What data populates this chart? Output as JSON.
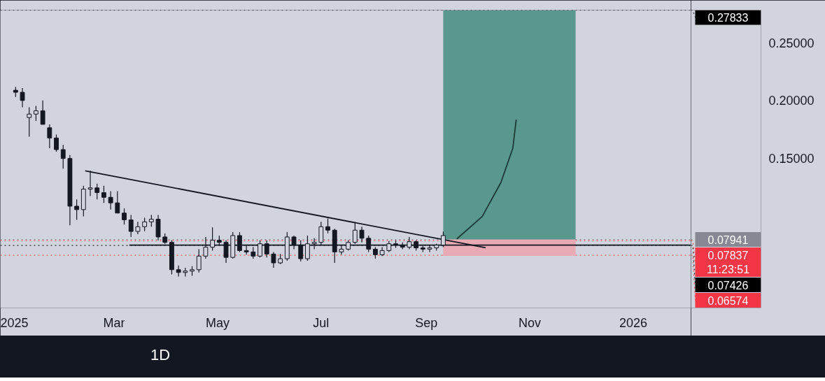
{
  "chart_data": {
    "type": "candlestick",
    "x": [
      "2025-01-02",
      "2025-01-06",
      "2025-01-10",
      "2025-01-14",
      "2025-01-18",
      "2025-01-22",
      "2025-01-26",
      "2025-01-30",
      "2025-02-03",
      "2025-02-07",
      "2025-02-11",
      "2025-02-15",
      "2025-02-19",
      "2025-02-23",
      "2025-02-27",
      "2025-03-03",
      "2025-03-07",
      "2025-03-11",
      "2025-03-15",
      "2025-03-19",
      "2025-03-23",
      "2025-03-27",
      "2025-03-31",
      "2025-04-04",
      "2025-04-08",
      "2025-04-12",
      "2025-04-16",
      "2025-04-20",
      "2025-04-24",
      "2025-04-28",
      "2025-05-02",
      "2025-05-06",
      "2025-05-10",
      "2025-05-14",
      "2025-05-18",
      "2025-05-22",
      "2025-05-26",
      "2025-05-30",
      "2025-06-03",
      "2025-06-07",
      "2025-06-11",
      "2025-06-15",
      "2025-06-19",
      "2025-06-23",
      "2025-06-27",
      "2025-07-01",
      "2025-07-05",
      "2025-07-09",
      "2025-07-13",
      "2025-07-17",
      "2025-07-21",
      "2025-07-25",
      "2025-07-29",
      "2025-08-02",
      "2025-08-06",
      "2025-08-10",
      "2025-08-14",
      "2025-08-18",
      "2025-08-22",
      "2025-08-26",
      "2025-08-30",
      "2025-09-03",
      "2025-09-07",
      "2025-09-11"
    ],
    "ohlc": [
      [
        0.2089,
        0.2119,
        0.203,
        0.2071
      ],
      [
        0.2071,
        0.2107,
        0.1941,
        0.2
      ],
      [
        0.1852,
        0.1941,
        0.1686,
        0.1882
      ],
      [
        0.1882,
        0.1953,
        0.1823,
        0.1911
      ],
      [
        0.1911,
        0.2,
        0.1793,
        0.1793
      ],
      [
        0.1763,
        0.1793,
        0.1586,
        0.1675
      ],
      [
        0.1675,
        0.1704,
        0.1556,
        0.1574
      ],
      [
        0.1574,
        0.1615,
        0.1408,
        0.1497
      ],
      [
        0.1497,
        0.1527,
        0.0917,
        0.1083
      ],
      [
        0.1083,
        0.1142,
        0.0964,
        0.1053
      ],
      [
        0.1053,
        0.126,
        0.0994,
        0.1231
      ],
      [
        0.1231,
        0.139,
        0.1171,
        0.1242
      ],
      [
        0.1242,
        0.1278,
        0.1142,
        0.1201
      ],
      [
        0.1201,
        0.126,
        0.1112,
        0.116
      ],
      [
        0.116,
        0.1213,
        0.1053,
        0.1112
      ],
      [
        0.1112,
        0.1213,
        0.1023,
        0.1023
      ],
      [
        0.1023,
        0.1065,
        0.0923,
        0.0964
      ],
      [
        0.0964,
        0.1006,
        0.0816,
        0.0864
      ],
      [
        0.0864,
        0.0947,
        0.084,
        0.0905
      ],
      [
        0.0905,
        0.0982,
        0.0864,
        0.0947
      ],
      [
        0.0947,
        0.1006,
        0.0905,
        0.097
      ],
      [
        0.097,
        0.1006,
        0.0787,
        0.0816
      ],
      [
        0.0816,
        0.0846,
        0.0757,
        0.0769
      ],
      [
        0.0769,
        0.0787,
        0.0491,
        0.0532
      ],
      [
        0.0532,
        0.0568,
        0.0473,
        0.0508
      ],
      [
        0.0508,
        0.0549,
        0.0473,
        0.052
      ],
      [
        0.052,
        0.0562,
        0.0479,
        0.0532
      ],
      [
        0.0532,
        0.071,
        0.0508,
        0.065
      ],
      [
        0.065,
        0.0816,
        0.0627,
        0.0727
      ],
      [
        0.0727,
        0.0899,
        0.0698,
        0.0787
      ],
      [
        0.0787,
        0.0828,
        0.0745,
        0.0769
      ],
      [
        0.0769,
        0.0787,
        0.0591,
        0.0639
      ],
      [
        0.0639,
        0.0858,
        0.0627,
        0.0828
      ],
      [
        0.0828,
        0.0858,
        0.0686,
        0.0698
      ],
      [
        0.0698,
        0.0745,
        0.0662,
        0.0686
      ],
      [
        0.0686,
        0.0727,
        0.0627,
        0.065
      ],
      [
        0.065,
        0.0787,
        0.0639,
        0.0757
      ],
      [
        0.0757,
        0.0787,
        0.0639,
        0.0668
      ],
      [
        0.0668,
        0.0686,
        0.0549,
        0.0591
      ],
      [
        0.0591,
        0.0668,
        0.0579,
        0.0627
      ],
      [
        0.0627,
        0.0858,
        0.0609,
        0.0816
      ],
      [
        0.0816,
        0.0828,
        0.071,
        0.0745
      ],
      [
        0.0745,
        0.0787,
        0.0603,
        0.0627
      ],
      [
        0.0627,
        0.0828,
        0.0609,
        0.0757
      ],
      [
        0.0757,
        0.0805,
        0.071,
        0.0769
      ],
      [
        0.0769,
        0.0947,
        0.0745,
        0.0905
      ],
      [
        0.0905,
        0.0976,
        0.0846,
        0.0875
      ],
      [
        0.0875,
        0.0887,
        0.0591,
        0.0686
      ],
      [
        0.0686,
        0.0745,
        0.0662,
        0.071
      ],
      [
        0.071,
        0.0787,
        0.0698,
        0.0769
      ],
      [
        0.0769,
        0.0935,
        0.0757,
        0.0875
      ],
      [
        0.0875,
        0.0905,
        0.0769,
        0.0805
      ],
      [
        0.0805,
        0.0828,
        0.0686,
        0.071
      ],
      [
        0.071,
        0.0727,
        0.0627,
        0.0662
      ],
      [
        0.0662,
        0.0727,
        0.065,
        0.0698
      ],
      [
        0.0698,
        0.0781,
        0.0686,
        0.0757
      ],
      [
        0.0757,
        0.0787,
        0.0721,
        0.0745
      ],
      [
        0.0745,
        0.0769,
        0.071,
        0.0727
      ],
      [
        0.0727,
        0.0816,
        0.071,
        0.0775
      ],
      [
        0.0775,
        0.0787,
        0.0698,
        0.0721
      ],
      [
        0.0721,
        0.0745,
        0.0686,
        0.071
      ],
      [
        0.071,
        0.0745,
        0.0686,
        0.0721
      ],
      [
        0.0721,
        0.0757,
        0.0698,
        0.0745
      ],
      [
        0.0745,
        0.0864,
        0.0727,
        0.0828
      ]
    ],
    "color": "#131722",
    "series": [
      {
        "type": "line",
        "x": [
          "2025-09-11",
          "2025-11-28"
        ],
        "values": [
          0.0794,
          0.0794
        ],
        "upper": [
          0.2783,
          0.2783
        ],
        "lower": [
          0.0794,
          0.0794
        ],
        "color": "#5a978c"
      },
      {
        "type": "line",
        "x": [
          "2025-09-11",
          "2025-11-28"
        ],
        "values": [
          0.0657,
          0.0657
        ],
        "upper": [
          0.0794,
          0.0794
        ],
        "lower": [
          0.0657,
          0.0657
        ],
        "color": "#e8aab4"
      },
      {
        "type": "line",
        "x": [
          "2025-02-12",
          "2025-10-06"
        ],
        "values": [
          0.139,
          0.0722
        ],
        "color": "#131722"
      },
      {
        "type": "line",
        "x": [
          "2025-03-10",
          "2026-02-04"
        ],
        "values": [
          0.0745,
          0.0745
        ],
        "color": "#131722"
      },
      {
        "type": "line",
        "x": [
          "2025-09-19",
          "2025-10-04",
          "2025-10-15",
          "2025-10-22",
          "2025-10-24"
        ],
        "values": [
          0.0799,
          0.0994,
          0.1289,
          0.1586,
          0.1834
        ],
        "color": "#1d3b36"
      }
    ],
    "ref_lines": [
      {
        "axis": "y",
        "value": 0.27833,
        "label": "0.27833",
        "color": "#000000",
        "line_style": "dotted"
      },
      {
        "axis": "y",
        "value": 0.07941,
        "label": "0.07941",
        "color": "#868993",
        "line_style": "dotted"
      },
      {
        "axis": "y",
        "value": 0.07837,
        "label": "0.07837\n11:23:51",
        "color": "#f23645",
        "line_style": "dotted"
      },
      {
        "axis": "y",
        "value": 0.07426,
        "label": "0.07426",
        "color": "#000000",
        "line_style": "dotted"
      },
      {
        "axis": "y",
        "value": 0.06574,
        "label": "0.06574",
        "color": "#f23645",
        "line_style": "dotted"
      }
    ],
    "annotations": [
      "1D"
    ],
    "xlim": [
      "2024-12-24",
      "2026-02-04"
    ],
    "xticks": [
      {
        "value": "2025-01-01",
        "label": "2025"
      },
      {
        "value": "2025-03-01",
        "label": "Mar"
      },
      {
        "value": "2025-05-01",
        "label": "May"
      },
      {
        "value": "2025-07-01",
        "label": "Jul"
      },
      {
        "value": "2025-09-01",
        "label": "Sep"
      },
      {
        "value": "2025-11-01",
        "label": "Nov"
      },
      {
        "value": "2026-01-01",
        "label": "2026"
      }
    ],
    "ylim": [
      0.02,
      0.2784
    ],
    "yticks": [
      {
        "value": 0.15,
        "label": "0.15000"
      },
      {
        "value": 0.2,
        "label": "0.20000"
      },
      {
        "value": 0.25,
        "label": "0.25000"
      }
    ],
    "grid": false
  }
}
